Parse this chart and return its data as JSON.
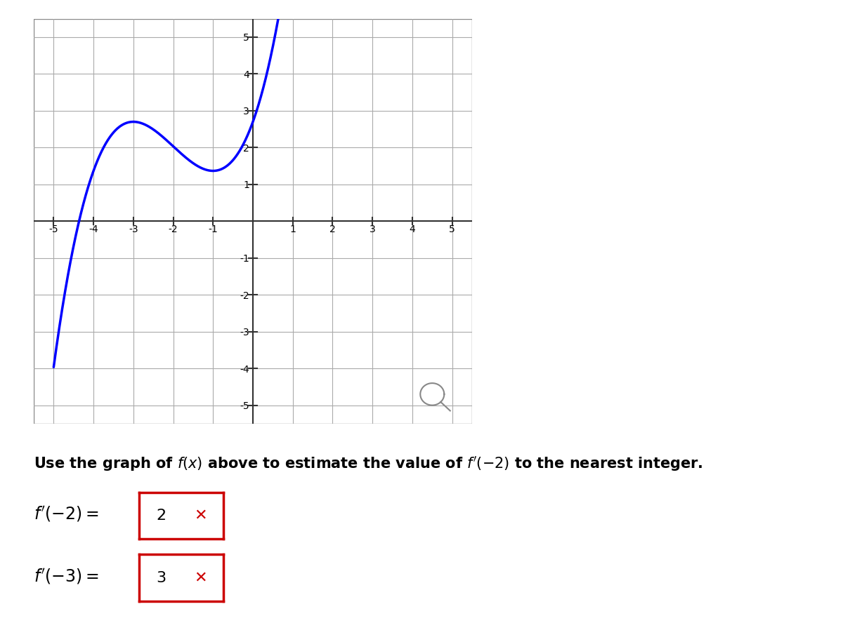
{
  "xlim": [
    -5.5,
    5.5
  ],
  "ylim": [
    -5.5,
    5.5
  ],
  "xticks": [
    -5,
    -4,
    -3,
    -2,
    -1,
    1,
    2,
    3,
    4,
    5
  ],
  "yticks": [
    -5,
    -4,
    -3,
    -2,
    -1,
    1,
    2,
    3,
    4,
    5
  ],
  "curve_color": "#0000FF",
  "curve_linewidth": 2.5,
  "grid_color": "#AAAAAA",
  "axis_color": "#555555",
  "background_color": "#FFFFFF",
  "instruction_text": "Use the graph of $f(x)$ above to estimate the value of $f'(-2)$ to the nearest integer.",
  "answer1_label": "$f'(-2) =$",
  "answer1_value": "2",
  "answer2_label": "$f'(-3) =$",
  "answer2_value": "3",
  "box_color": "#CC0000",
  "x_mark_color": "#CC0000",
  "fig_width": 12.0,
  "fig_height": 8.88
}
